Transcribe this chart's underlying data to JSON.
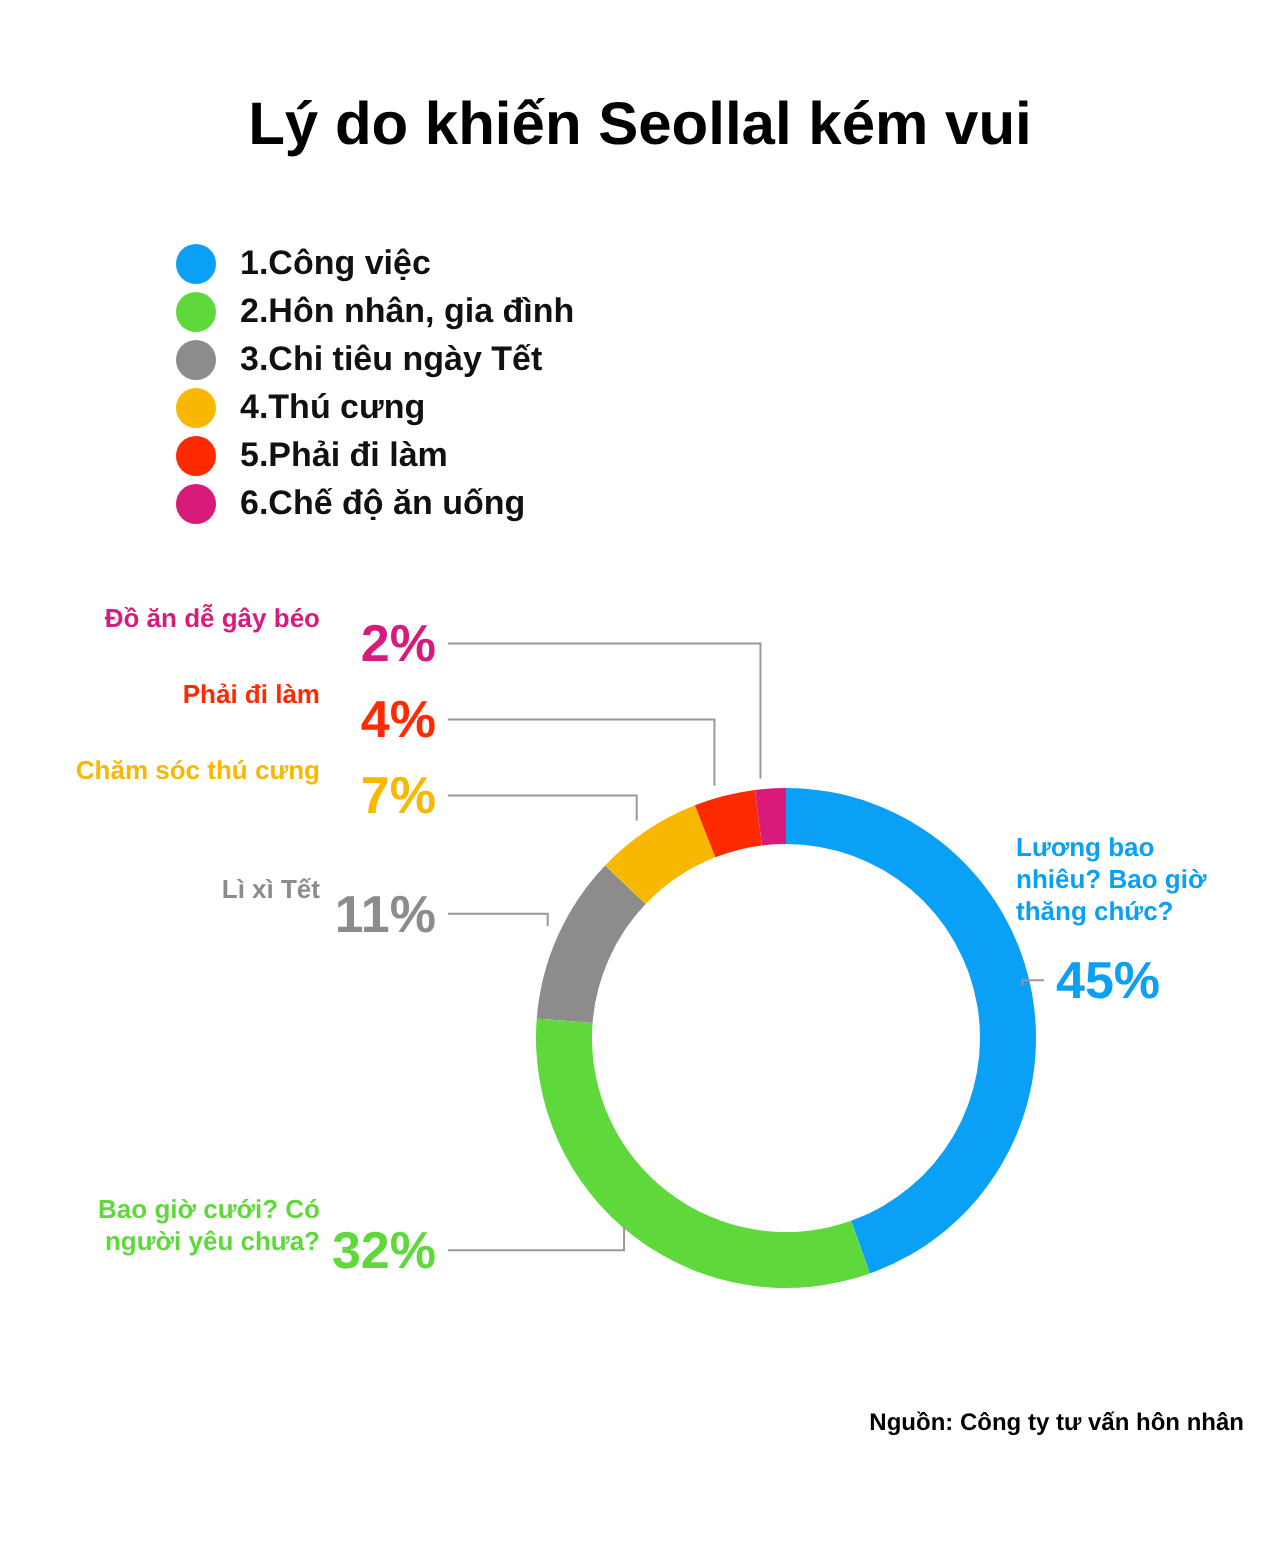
{
  "chart_data": {
    "type": "donut",
    "title": "Lý do khiến Seollal kém vui",
    "categories": [
      "1.Công việc",
      "2.Hôn nhân, gia đình",
      "3.Chi tiêu ngày Tết",
      "4.Thú cưng",
      "5.Phải đi làm",
      "6.Chế độ ăn uống"
    ],
    "values": [
      45,
      32,
      11,
      7,
      4,
      2
    ],
    "colors": [
      "#0aa0f5",
      "#5fd83c",
      "#8c8c8c",
      "#f9b800",
      "#ff2a00",
      "#d81b7a"
    ],
    "value_labels": [
      "45%",
      "32%",
      "11%",
      "7%",
      "4%",
      "2%"
    ],
    "legend": "top left",
    "annotations": [
      {
        "text": "Lương bao nhiêu? Bao giờ thăng chức?",
        "x": "1.Công việc"
      },
      {
        "text": "Bao giờ cưới? Có người yêu chưa?",
        "x": "2.Hôn nhân, gia đình"
      },
      {
        "text": "Lì xì Tết",
        "x": "3.Chi tiêu ngày Tết"
      },
      {
        "text": "Chăm sóc thú cưng",
        "x": "4.Thú cưng"
      },
      {
        "text": "Phải đi làm",
        "x": "5.Phải đi làm"
      },
      {
        "text": "Đồ ăn dễ gây béo",
        "x": "6.Chế độ ăn uống"
      },
      "Nguồn: Công ty tư vấn hôn nhân"
    ]
  }
}
